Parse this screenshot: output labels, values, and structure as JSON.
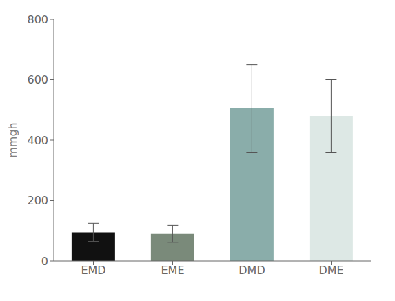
{
  "chart_data": {
    "type": "bar",
    "ylabel": "mmgh",
    "categories": [
      "EMD",
      "EME",
      "DMD",
      "DME"
    ],
    "values": [
      95,
      90,
      505,
      480
    ],
    "errors_upper": [
      30,
      28,
      145,
      120
    ],
    "errors_lower": [
      30,
      28,
      145,
      120
    ],
    "colors": [
      "#111111",
      "#7a8a7a",
      "#8aadaa",
      "#dde8e5"
    ],
    "ylim": [
      0,
      800
    ],
    "yticks": [
      0,
      200,
      400,
      600,
      800
    ],
    "grid": false
  }
}
